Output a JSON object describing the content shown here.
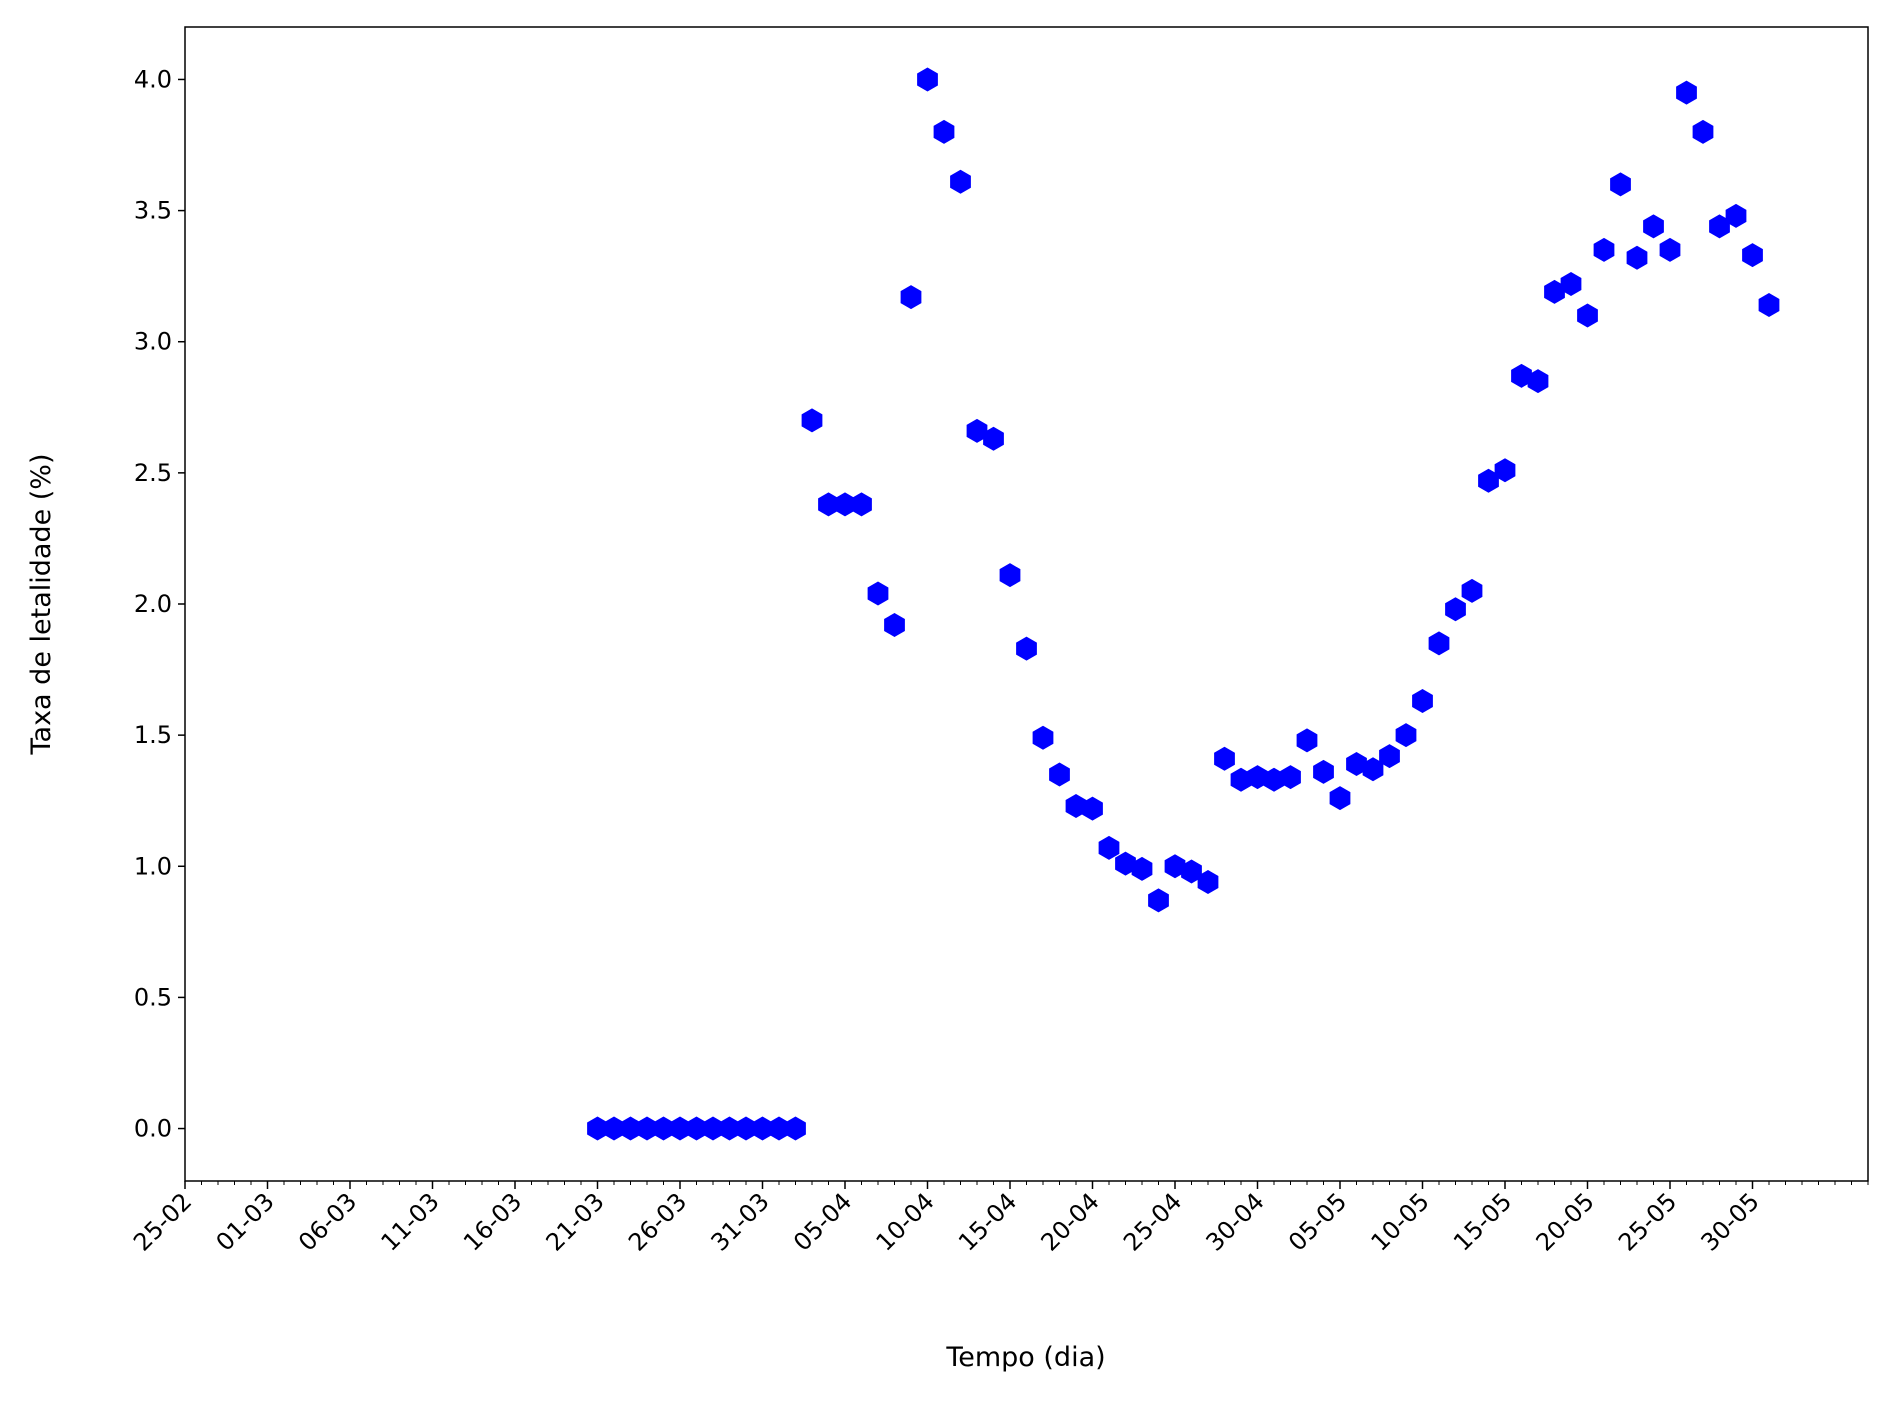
{
  "chart_data": {
    "type": "scatter",
    "x_label": "Tempo (dia)",
    "y_label": "Taxa de letalidade (%)",
    "x": [
      "21-03",
      "22-03",
      "23-03",
      "24-03",
      "25-03",
      "26-03",
      "27-03",
      "28-03",
      "29-03",
      "30-03",
      "31-03",
      "01-04",
      "02-04",
      "03-04",
      "04-04",
      "05-04",
      "06-04",
      "07-04",
      "08-04",
      "09-04",
      "10-04",
      "11-04",
      "12-04",
      "13-04",
      "14-04",
      "15-04",
      "16-04",
      "17-04",
      "18-04",
      "19-04",
      "20-04",
      "21-04",
      "22-04",
      "23-04",
      "24-04",
      "25-04",
      "26-04",
      "27-04",
      "28-04",
      "29-04",
      "30-04",
      "01-05",
      "02-05",
      "03-05",
      "04-05",
      "05-05",
      "06-05",
      "07-05",
      "08-05",
      "09-05",
      "10-05",
      "11-05",
      "12-05",
      "13-05",
      "14-05",
      "15-05",
      "16-05",
      "17-05",
      "18-05",
      "19-05",
      "20-05",
      "21-05",
      "22-05",
      "23-05",
      "24-05",
      "25-05",
      "26-05",
      "27-05",
      "28-05",
      "29-05",
      "30-05",
      "31-05"
    ],
    "values": [
      0,
      0,
      0,
      0,
      0,
      0,
      0,
      0,
      0,
      0,
      0,
      0,
      0,
      2.7,
      2.38,
      2.38,
      2.38,
      2.04,
      1.92,
      3.17,
      4.0,
      3.8,
      3.61,
      2.66,
      2.63,
      2.11,
      1.83,
      1.49,
      1.35,
      1.23,
      1.22,
      1.07,
      1.01,
      0.99,
      0.87,
      1.0,
      0.98,
      0.94,
      1.41,
      1.33,
      1.34,
      1.33,
      1.34,
      1.48,
      1.36,
      1.26,
      1.39,
      1.37,
      1.42,
      1.5,
      1.63,
      1.85,
      1.98,
      2.05,
      2.47,
      2.51,
      2.87,
      2.85,
      3.19,
      3.22,
      3.1,
      3.35,
      3.6,
      3.32,
      3.44,
      3.35,
      3.95,
      3.8,
      3.44,
      3.48,
      3.33,
      3.14
    ],
    "color": "#0000ff",
    "marker": "hexagon",
    "xlim": [
      "25-02",
      "06-06"
    ],
    "xticks": [
      "25-02",
      "01-03",
      "06-03",
      "11-03",
      "16-03",
      "21-03",
      "26-03",
      "31-03",
      "05-04",
      "10-04",
      "15-04",
      "20-04",
      "25-04",
      "30-04",
      "05-05",
      "10-05",
      "15-05",
      "20-05",
      "25-05",
      "30-05"
    ],
    "x_minor_ticks": true,
    "ylim": [
      -0.2,
      4.2
    ],
    "yticks": [
      {
        "value": 0,
        "label": "0.0"
      },
      0.5,
      {
        "value": 1,
        "label": "1.0"
      },
      1.5,
      {
        "value": 2,
        "label": "2.0"
      },
      2.5,
      {
        "value": 3,
        "label": "3.0"
      },
      3.5,
      {
        "value": 4,
        "label": "4.0"
      }
    ],
    "grid": false
  }
}
